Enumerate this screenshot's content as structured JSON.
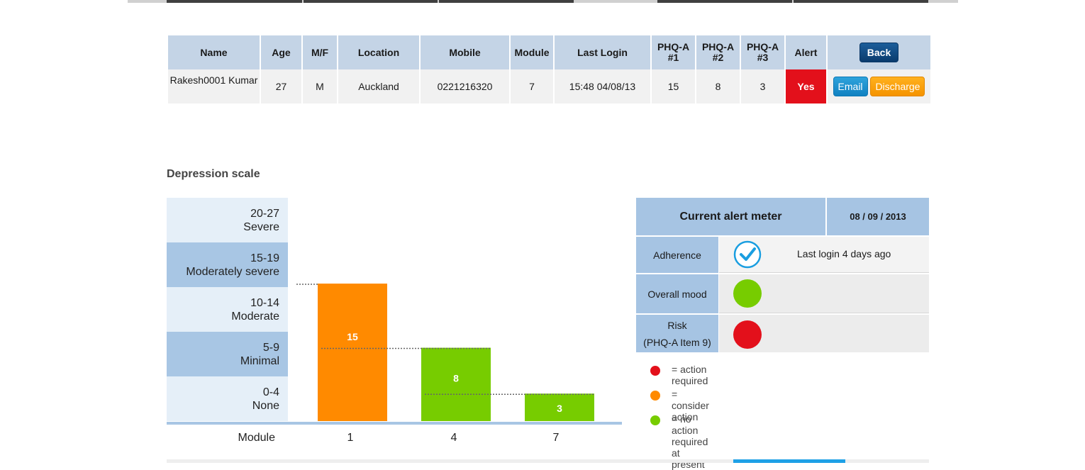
{
  "patient_table": {
    "headers": [
      "Name",
      "Age",
      "M/F",
      "Location",
      "Mobile",
      "Module",
      "Last Login",
      "PHQ-A\n#1",
      "PHQ-A\n#2",
      "PHQ-A\n#3",
      "Alert"
    ],
    "back_label": "Back",
    "row": {
      "name": "Rakesh0001 Kumar",
      "age": "27",
      "sex": "M",
      "location": "Auckland",
      "mobile": "0221216320",
      "module": "7",
      "last_login": "15:48 04/08/13",
      "phq1": "15",
      "phq2": "8",
      "phq3": "3",
      "alert": "Yes"
    },
    "email_label": "Email",
    "discharge_label": "Discharge",
    "alert_color": "#e3101b"
  },
  "depression_scale": {
    "title": "Depression scale",
    "bands": [
      {
        "range": "20-27",
        "label": "Severe"
      },
      {
        "range": "15-19",
        "label": "Moderately severe"
      },
      {
        "range": "10-14",
        "label": "Moderate"
      },
      {
        "range": "5-9",
        "label": "Minimal"
      },
      {
        "range": "0-4",
        "label": "None"
      }
    ]
  },
  "chart_data": {
    "type": "bar",
    "title": "Depression scale",
    "xlabel": "Module",
    "ylabel": "",
    "categories": [
      "1",
      "4",
      "7"
    ],
    "values": [
      15,
      8,
      3
    ],
    "ylim": [
      0,
      16
    ],
    "colors": [
      "#ff8a00",
      "#77cc00",
      "#77cc00"
    ]
  },
  "alert_meter": {
    "title": "Current alert meter",
    "date": "08 / 09 / 2013",
    "rows": [
      {
        "label": "Adherence",
        "sublabel": "",
        "indicator": "check-icon",
        "text": "Last login 4 days ago",
        "color": "#1a9ee0"
      },
      {
        "label": "Overall mood",
        "sublabel": "",
        "indicator": "status-dot",
        "text": "",
        "color": "#77cc00"
      },
      {
        "label": "Risk",
        "sublabel": "(PHQ-A Item 9)",
        "indicator": "status-dot",
        "text": "",
        "color": "#e3101b"
      }
    ],
    "legend": [
      {
        "text": "= action required",
        "color": "#e3101b"
      },
      {
        "text": "= consider action",
        "color": "#ff8a00"
      },
      {
        "text": "= no action required at present",
        "color": "#77cc00"
      }
    ]
  }
}
